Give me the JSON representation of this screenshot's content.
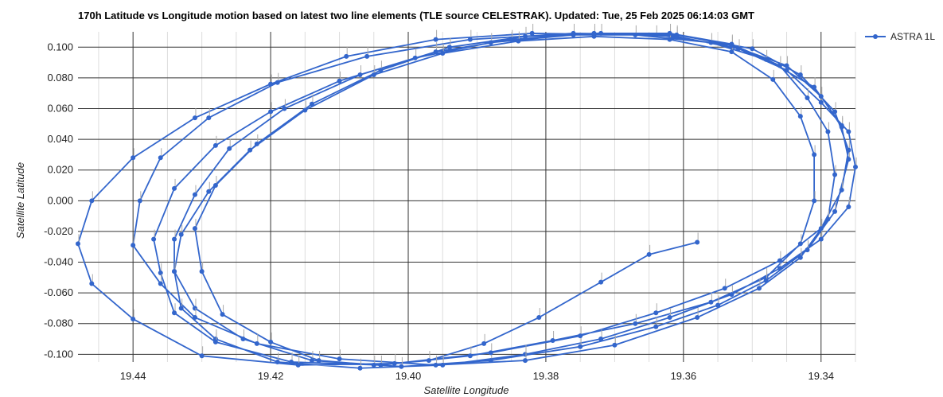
{
  "chart_data": {
    "type": "line",
    "title": "170h Latitude vs Longitude motion based on latest two line elements (TLE source CELESTRAK). Updated: Tue, 25 Feb 2025 06:14:03 GMT",
    "xlabel": "Satellite Longitude",
    "ylabel": "Satellite Latitude",
    "xlim": [
      19.448,
      19.335
    ],
    "x_direction": "reversed",
    "ylim": [
      -0.105,
      0.11
    ],
    "xticks": [
      19.44,
      19.42,
      19.4,
      19.38,
      19.36,
      19.34
    ],
    "xtick_labels": [
      "19.44",
      "19.42",
      "19.40",
      "19.38",
      "19.36",
      "19.34"
    ],
    "yticks": [
      0.1,
      0.08,
      0.06,
      0.04,
      0.02,
      0.0,
      -0.02,
      -0.04,
      -0.06,
      -0.08,
      -0.1
    ],
    "ytick_labels": [
      "0.100",
      "0.080",
      "0.060",
      "0.040",
      "0.020",
      "0.000",
      "-0.020",
      "-0.040",
      "-0.060",
      "-0.080",
      "-0.100"
    ],
    "grid": true,
    "legend_position": "right",
    "series": [
      {
        "name": "ASTRA 1L",
        "color": "#3366cc",
        "points": [
          [
            19.358,
            -0.027
          ],
          [
            19.365,
            -0.035
          ],
          [
            19.372,
            -0.053
          ],
          [
            19.381,
            -0.076
          ],
          [
            19.389,
            -0.093
          ],
          [
            19.397,
            -0.104
          ],
          [
            19.405,
            -0.107
          ],
          [
            19.413,
            -0.104
          ],
          [
            19.42,
            -0.092
          ],
          [
            19.427,
            -0.074
          ],
          [
            19.43,
            -0.046
          ],
          [
            19.431,
            -0.018
          ],
          [
            19.428,
            0.01
          ],
          [
            19.422,
            0.037
          ],
          [
            19.414,
            0.063
          ],
          [
            19.404,
            0.085
          ],
          [
            19.394,
            0.1
          ],
          [
            19.383,
            0.107
          ],
          [
            19.372,
            0.109
          ],
          [
            19.361,
            0.107
          ],
          [
            19.352,
            0.099
          ],
          [
            19.345,
            0.085
          ],
          [
            19.34,
            0.064
          ],
          [
            19.336,
            0.045
          ],
          [
            19.335,
            0.022
          ],
          [
            19.336,
            -0.004
          ],
          [
            19.34,
            -0.025
          ],
          [
            19.346,
            -0.044
          ],
          [
            19.353,
            -0.061
          ],
          [
            19.362,
            -0.076
          ],
          [
            19.372,
            -0.09
          ],
          [
            19.383,
            -0.1
          ],
          [
            19.395,
            -0.107
          ],
          [
            19.407,
            -0.109
          ],
          [
            19.419,
            -0.105
          ],
          [
            19.428,
            -0.09
          ],
          [
            19.433,
            -0.07
          ],
          [
            19.434,
            -0.046
          ],
          [
            19.433,
            -0.022
          ],
          [
            19.429,
            0.006
          ],
          [
            19.423,
            0.033
          ],
          [
            19.415,
            0.059
          ],
          [
            19.405,
            0.082
          ],
          [
            19.395,
            0.096
          ],
          [
            19.384,
            0.104
          ],
          [
            19.373,
            0.107
          ],
          [
            19.362,
            0.105
          ],
          [
            19.353,
            0.097
          ],
          [
            19.347,
            0.079
          ],
          [
            19.343,
            0.055
          ],
          [
            19.341,
            0.03
          ],
          [
            19.341,
            0.0
          ],
          [
            19.343,
            -0.028
          ],
          [
            19.348,
            -0.05
          ],
          [
            19.356,
            -0.066
          ],
          [
            19.367,
            -0.08
          ],
          [
            19.379,
            -0.091
          ],
          [
            19.391,
            -0.101
          ],
          [
            19.404,
            -0.107
          ],
          [
            19.417,
            -0.105
          ],
          [
            19.428,
            -0.092
          ],
          [
            19.434,
            -0.073
          ],
          [
            19.436,
            -0.047
          ],
          [
            19.437,
            -0.025
          ],
          [
            19.434,
            0.008
          ],
          [
            19.428,
            0.036
          ],
          [
            19.42,
            0.058
          ],
          [
            19.41,
            0.078
          ],
          [
            19.399,
            0.093
          ],
          [
            19.388,
            0.103
          ],
          [
            19.376,
            0.108
          ],
          [
            19.364,
            0.108
          ],
          [
            19.353,
            0.101
          ],
          [
            19.345,
            0.088
          ],
          [
            19.34,
            0.068
          ],
          [
            19.337,
            0.048
          ],
          [
            19.336,
            0.027
          ],
          [
            19.338,
            -0.007
          ],
          [
            19.342,
            -0.032
          ],
          [
            19.348,
            -0.052
          ],
          [
            19.355,
            -0.068
          ],
          [
            19.364,
            -0.082
          ],
          [
            19.375,
            -0.095
          ],
          [
            19.388,
            -0.104
          ],
          [
            19.401,
            -0.108
          ],
          [
            19.414,
            -0.104
          ],
          [
            19.424,
            -0.09
          ],
          [
            19.431,
            -0.07
          ],
          [
            19.434,
            -0.046
          ],
          [
            19.434,
            -0.025
          ],
          [
            19.431,
            0.004
          ],
          [
            19.426,
            0.034
          ],
          [
            19.418,
            0.06
          ],
          [
            19.407,
            0.082
          ],
          [
            19.396,
            0.097
          ],
          [
            19.385,
            0.105
          ],
          [
            19.373,
            0.109
          ],
          [
            19.362,
            0.109
          ],
          [
            19.353,
            0.102
          ],
          [
            19.346,
            0.088
          ],
          [
            19.342,
            0.067
          ],
          [
            19.339,
            0.045
          ],
          [
            19.338,
            0.017
          ],
          [
            19.339,
            -0.012
          ],
          [
            19.343,
            -0.037
          ],
          [
            19.349,
            -0.057
          ],
          [
            19.358,
            -0.076
          ],
          [
            19.37,
            -0.094
          ],
          [
            19.383,
            -0.104
          ],
          [
            19.396,
            -0.107
          ],
          [
            19.41,
            -0.103
          ],
          [
            19.422,
            -0.093
          ],
          [
            19.431,
            -0.076
          ],
          [
            19.436,
            -0.054
          ],
          [
            19.44,
            -0.029
          ],
          [
            19.439,
            0.0
          ],
          [
            19.436,
            0.028
          ],
          [
            19.429,
            0.054
          ],
          [
            19.419,
            0.077
          ],
          [
            19.406,
            0.094
          ],
          [
            19.391,
            0.105
          ],
          [
            19.376,
            0.109
          ],
          [
            19.361,
            0.108
          ],
          [
            19.35,
            0.099
          ],
          [
            19.343,
            0.082
          ],
          [
            19.338,
            0.058
          ],
          [
            19.336,
            0.033
          ],
          [
            19.337,
            0.007
          ],
          [
            19.34,
            -0.018
          ],
          [
            19.346,
            -0.039
          ],
          [
            19.354,
            -0.057
          ],
          [
            19.364,
            -0.073
          ],
          [
            19.375,
            -0.088
          ],
          [
            19.388,
            -0.099
          ],
          [
            19.402,
            -0.106
          ],
          [
            19.416,
            -0.107
          ],
          [
            19.43,
            -0.101
          ],
          [
            19.44,
            -0.077
          ],
          [
            19.446,
            -0.054
          ],
          [
            19.448,
            -0.028
          ],
          [
            19.446,
            0.0
          ],
          [
            19.44,
            0.028
          ],
          [
            19.431,
            0.054
          ],
          [
            19.42,
            0.076
          ],
          [
            19.409,
            0.094
          ],
          [
            19.396,
            0.105
          ],
          [
            19.382,
            0.109
          ],
          [
            19.367,
            0.108
          ],
          [
            19.356,
            0.103
          ],
          [
            19.348,
            0.092
          ],
          [
            19.341,
            0.074
          ],
          [
            19.337,
            0.049
          ]
        ]
      }
    ]
  }
}
